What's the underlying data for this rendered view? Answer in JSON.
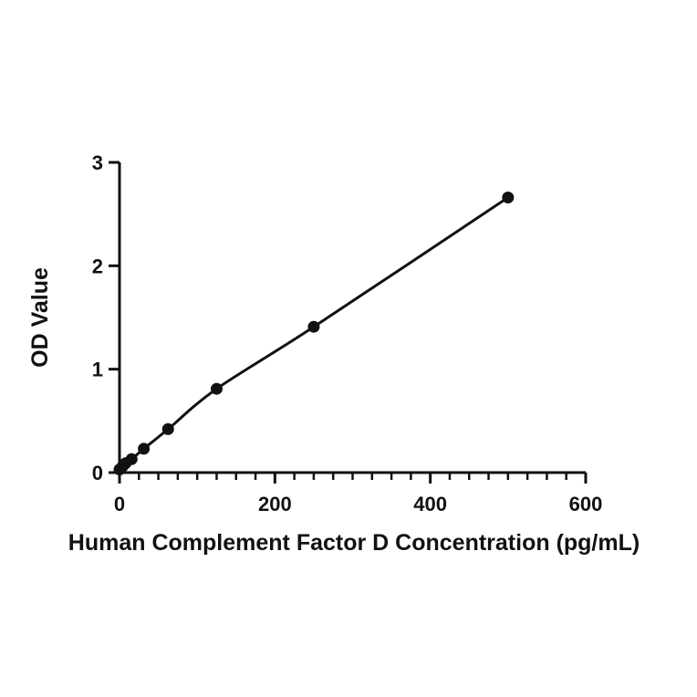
{
  "chart_data": {
    "type": "scatter",
    "title": "",
    "xlabel": "Human Complement Factor D Concentration (pg/mL)",
    "ylabel": "OD Value",
    "xlim": [
      0,
      600
    ],
    "ylim": [
      0,
      3
    ],
    "x_ticks": [
      "0",
      "200",
      "400",
      "600"
    ],
    "y_ticks": [
      "0",
      "1",
      "2",
      "3"
    ],
    "x_minor_step": 25,
    "grid": false,
    "legend": "none",
    "fit_line": true,
    "color": "#111111",
    "series": [
      {
        "x": [
          0,
          3.9,
          7.8,
          15.6,
          31.25,
          62.5,
          125,
          250,
          500
        ],
        "values": [
          0.03,
          0.06,
          0.09,
          0.13,
          0.23,
          0.42,
          0.81,
          1.41,
          2.66
        ]
      }
    ]
  }
}
